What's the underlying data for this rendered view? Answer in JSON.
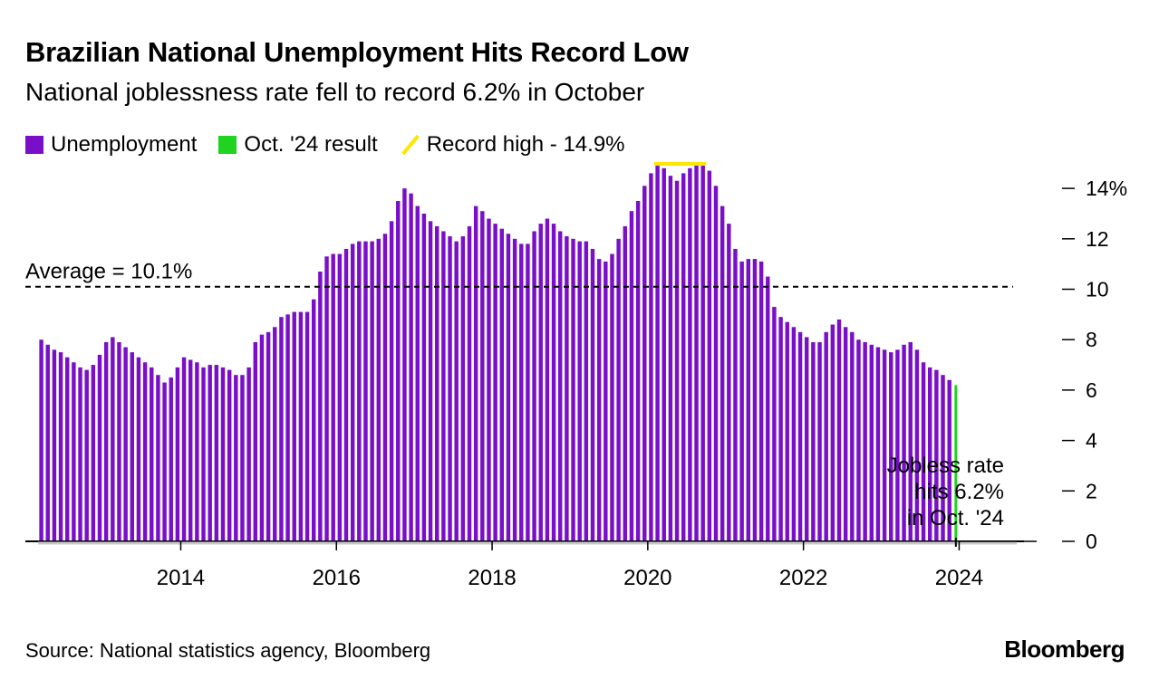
{
  "header": {
    "title": "Brazilian National Unemployment Hits Record Low",
    "subtitle": "National joblessness rate fell to record 6.2% in October"
  },
  "legend": [
    {
      "label": "Unemployment",
      "color": "#7a0fc8",
      "kind": "square"
    },
    {
      "label": "Oct. '24 result",
      "color": "#1fd31f",
      "kind": "square"
    },
    {
      "label": "Record high - 14.9%",
      "color": "#ffe600",
      "kind": "line"
    }
  ],
  "footer": {
    "source": "Source: National statistics agency, Bloomberg",
    "brand": "Bloomberg"
  },
  "chart_data": {
    "type": "bar",
    "ylim": [
      0,
      15
    ],
    "yticks": [
      0,
      2,
      4,
      6,
      8,
      10,
      12,
      14
    ],
    "ytick_labels": [
      "0",
      "2",
      "4",
      "6",
      "8",
      "10",
      "12",
      "14%"
    ],
    "x_tick_labels": [
      "2014",
      "2016",
      "2018",
      "2020",
      "2022",
      "2024"
    ],
    "start": "2012-03",
    "end": "2024-10",
    "series": [
      {
        "name": "Unemployment",
        "color": "#7a0fc8",
        "values": [
          8.0,
          7.8,
          7.6,
          7.5,
          7.3,
          7.1,
          6.9,
          6.8,
          7.0,
          7.4,
          7.9,
          8.1,
          7.9,
          7.7,
          7.5,
          7.3,
          7.1,
          6.9,
          6.6,
          6.3,
          6.5,
          6.9,
          7.3,
          7.2,
          7.1,
          6.9,
          7.0,
          7.0,
          6.9,
          6.8,
          6.6,
          6.6,
          6.9,
          7.9,
          8.2,
          8.3,
          8.5,
          8.9,
          9.0,
          9.1,
          9.1,
          9.1,
          9.6,
          10.7,
          11.3,
          11.4,
          11.4,
          11.6,
          11.8,
          11.9,
          11.9,
          11.9,
          12.0,
          12.2,
          12.7,
          13.5,
          14.0,
          13.8,
          13.3,
          13.0,
          12.7,
          12.5,
          12.3,
          12.1,
          11.9,
          12.1,
          12.5,
          13.3,
          13.1,
          12.8,
          12.6,
          12.4,
          12.2,
          12.0,
          11.8,
          11.8,
          12.3,
          12.6,
          12.8,
          12.6,
          12.3,
          12.1,
          12.0,
          11.9,
          11.9,
          11.6,
          11.2,
          11.1,
          11.4,
          12.0,
          12.5,
          13.1,
          13.5,
          14.1,
          14.6,
          14.9,
          14.8,
          14.5,
          14.3,
          14.6,
          14.8,
          14.9,
          14.9,
          14.7,
          14.1,
          13.3,
          12.6,
          11.6,
          11.1,
          11.2,
          11.2,
          11.1,
          10.5,
          9.3,
          8.9,
          8.7,
          8.5,
          8.3,
          8.1,
          7.9,
          7.9,
          8.3,
          8.6,
          8.8,
          8.5,
          8.3,
          8.0,
          7.9,
          7.8,
          7.7,
          7.6,
          7.5,
          7.6,
          7.8,
          7.9,
          7.6,
          7.1,
          6.9,
          6.8,
          6.6,
          6.4
        ]
      },
      {
        "name": "Oct. '24 result",
        "color": "#1fd31f",
        "values": [
          6.2
        ]
      }
    ],
    "reference_lines": [
      {
        "label": "Average = 10.1%",
        "value": 10.1,
        "style": "dashed"
      },
      {
        "label": "Record high - 14.9%",
        "value": 14.9,
        "color": "#ffe600"
      }
    ],
    "annotation": "Jobless rate\nhits 6.2%\nin Oct. '24",
    "grid": false,
    "legend_position": "top-left"
  }
}
